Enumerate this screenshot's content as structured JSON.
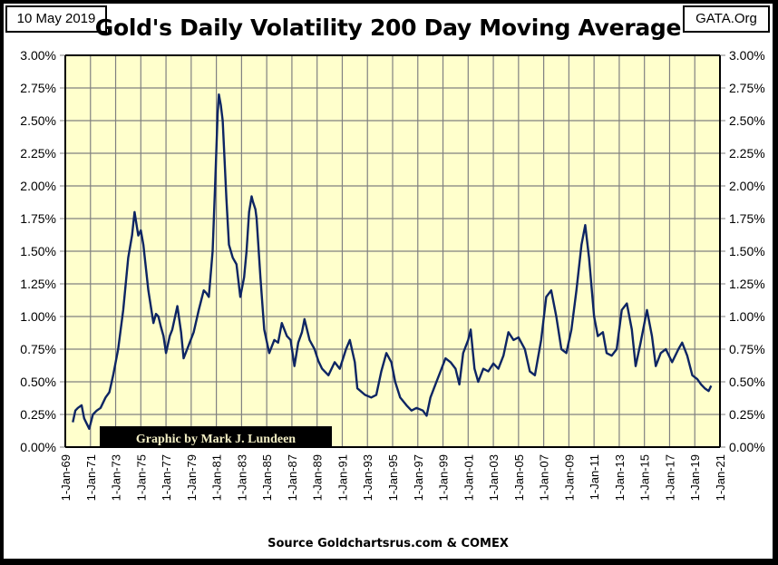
{
  "header": {
    "date": "10 May 2019",
    "site": "GATA.Org"
  },
  "footer": {
    "source": "Source Goldchartsrus.com & COMEX"
  },
  "credit": "Graphic by Mark J. Lundeen",
  "colors": {
    "plot_bg": "#ffffcc",
    "line": "#0d2563",
    "grid": "#808080",
    "credit_bg": "#000000"
  },
  "chart_data": {
    "type": "line",
    "title": "Gold's Daily Volatility 200 Day Moving Average",
    "xlabel": "",
    "ylabel": "",
    "y_unit": "%",
    "ylim": [
      0,
      3.0
    ],
    "xlim": [
      1969,
      2021
    ],
    "grid": true,
    "legend": "none",
    "y_ticks": [
      "0.00%",
      "0.25%",
      "0.50%",
      "0.75%",
      "1.00%",
      "1.25%",
      "1.50%",
      "1.75%",
      "2.00%",
      "2.25%",
      "2.50%",
      "2.75%",
      "3.00%"
    ],
    "y_tick_values": [
      0,
      0.25,
      0.5,
      0.75,
      1.0,
      1.25,
      1.5,
      1.75,
      2.0,
      2.25,
      2.5,
      2.75,
      3.0
    ],
    "x_ticks": [
      "1-Jan-69",
      "1-Jan-71",
      "1-Jan-73",
      "1-Jan-75",
      "1-Jan-77",
      "1-Jan-79",
      "1-Jan-81",
      "1-Jan-83",
      "1-Jan-85",
      "1-Jan-87",
      "1-Jan-89",
      "1-Jan-91",
      "1-Jan-93",
      "1-Jan-95",
      "1-Jan-97",
      "1-Jan-99",
      "1-Jan-01",
      "1-Jan-03",
      "1-Jan-05",
      "1-Jan-07",
      "1-Jan-09",
      "1-Jan-11",
      "1-Jan-13",
      "1-Jan-15",
      "1-Jan-17",
      "1-Jan-19",
      "1-Jan-21"
    ],
    "x_tick_values": [
      1969,
      1971,
      1973,
      1975,
      1977,
      1979,
      1981,
      1983,
      1985,
      1987,
      1989,
      1991,
      1993,
      1995,
      1997,
      1999,
      2001,
      2003,
      2005,
      2007,
      2009,
      2011,
      2013,
      2015,
      2017,
      2019,
      2021
    ],
    "series": [
      {
        "name": "Gold Daily Volatility 200 DMA",
        "x": [
          1969.6,
          1969.8,
          1970.0,
          1970.3,
          1970.5,
          1970.9,
          1971.2,
          1971.5,
          1971.8,
          1972.2,
          1972.5,
          1972.8,
          1973.2,
          1973.6,
          1974.0,
          1974.3,
          1974.5,
          1974.7,
          1974.8,
          1975.0,
          1975.2,
          1975.6,
          1976.0,
          1976.2,
          1976.4,
          1976.6,
          1976.8,
          1977.0,
          1977.3,
          1977.5,
          1977.9,
          1978.2,
          1978.4,
          1978.8,
          1979.2,
          1979.6,
          1980.0,
          1980.2,
          1980.4,
          1980.7,
          1980.9,
          1981.1,
          1981.2,
          1981.35,
          1981.5,
          1981.8,
          1982.0,
          1982.3,
          1982.6,
          1982.9,
          1983.2,
          1983.4,
          1983.6,
          1983.8,
          1983.9,
          1984.1,
          1984.2,
          1984.5,
          1984.8,
          1985.2,
          1985.6,
          1985.9,
          1986.2,
          1986.4,
          1986.6,
          1986.9,
          1987.2,
          1987.5,
          1987.8,
          1988.0,
          1988.4,
          1988.8,
          1989.1,
          1989.4,
          1989.9,
          1990.4,
          1990.8,
          1991.3,
          1991.6,
          1992.0,
          1992.2,
          1992.8,
          1993.3,
          1993.7,
          1994.1,
          1994.5,
          1994.9,
          1995.2,
          1995.6,
          1996.1,
          1996.5,
          1996.9,
          1997.4,
          1997.7,
          1998.0,
          1998.4,
          1998.8,
          1999.2,
          1999.6,
          2000.0,
          2000.3,
          2000.6,
          2001.0,
          2001.2,
          2001.5,
          2001.8,
          2002.2,
          2002.6,
          2003.0,
          2003.4,
          2003.8,
          2004.2,
          2004.6,
          2005.0,
          2005.5,
          2005.9,
          2006.3,
          2006.8,
          2007.2,
          2007.6,
          2008.0,
          2008.4,
          2008.8,
          2009.2,
          2009.6,
          2010.0,
          2010.3,
          2010.6,
          2011.0,
          2011.3,
          2011.7,
          2012.0,
          2012.4,
          2012.8,
          2013.2,
          2013.6,
          2014.0,
          2014.3,
          2014.7,
          2015.2,
          2015.6,
          2015.9,
          2016.3,
          2016.7,
          2017.2,
          2017.7,
          2018.0,
          2018.4,
          2018.8,
          2019.2,
          2019.5,
          2019.8,
          2020.1,
          2020.3
        ],
        "values": [
          0.19,
          0.28,
          0.3,
          0.32,
          0.22,
          0.14,
          0.25,
          0.28,
          0.3,
          0.38,
          0.42,
          0.55,
          0.75,
          1.05,
          1.45,
          1.62,
          1.8,
          1.68,
          1.62,
          1.66,
          1.55,
          1.2,
          0.95,
          1.02,
          1.0,
          0.92,
          0.85,
          0.72,
          0.85,
          0.9,
          1.08,
          0.88,
          0.68,
          0.78,
          0.88,
          1.05,
          1.2,
          1.18,
          1.15,
          1.5,
          2.0,
          2.55,
          2.7,
          2.62,
          2.5,
          1.9,
          1.55,
          1.45,
          1.4,
          1.15,
          1.3,
          1.5,
          1.8,
          1.92,
          1.88,
          1.82,
          1.75,
          1.3,
          0.9,
          0.72,
          0.82,
          0.8,
          0.95,
          0.9,
          0.85,
          0.82,
          0.62,
          0.8,
          0.88,
          0.98,
          0.82,
          0.75,
          0.66,
          0.6,
          0.55,
          0.65,
          0.6,
          0.75,
          0.82,
          0.65,
          0.45,
          0.4,
          0.38,
          0.4,
          0.58,
          0.72,
          0.65,
          0.5,
          0.38,
          0.32,
          0.28,
          0.3,
          0.28,
          0.24,
          0.38,
          0.48,
          0.58,
          0.68,
          0.65,
          0.6,
          0.48,
          0.72,
          0.82,
          0.9,
          0.6,
          0.5,
          0.6,
          0.58,
          0.64,
          0.6,
          0.7,
          0.88,
          0.82,
          0.84,
          0.75,
          0.58,
          0.55,
          0.82,
          1.15,
          1.2,
          1.0,
          0.75,
          0.72,
          0.9,
          1.2,
          1.55,
          1.7,
          1.45,
          1.0,
          0.85,
          0.88,
          0.72,
          0.7,
          0.75,
          1.05,
          1.1,
          0.9,
          0.62,
          0.8,
          1.05,
          0.85,
          0.62,
          0.72,
          0.75,
          0.65,
          0.75,
          0.8,
          0.7,
          0.55,
          0.52,
          0.48,
          0.45,
          0.43,
          0.47
        ]
      }
    ]
  }
}
